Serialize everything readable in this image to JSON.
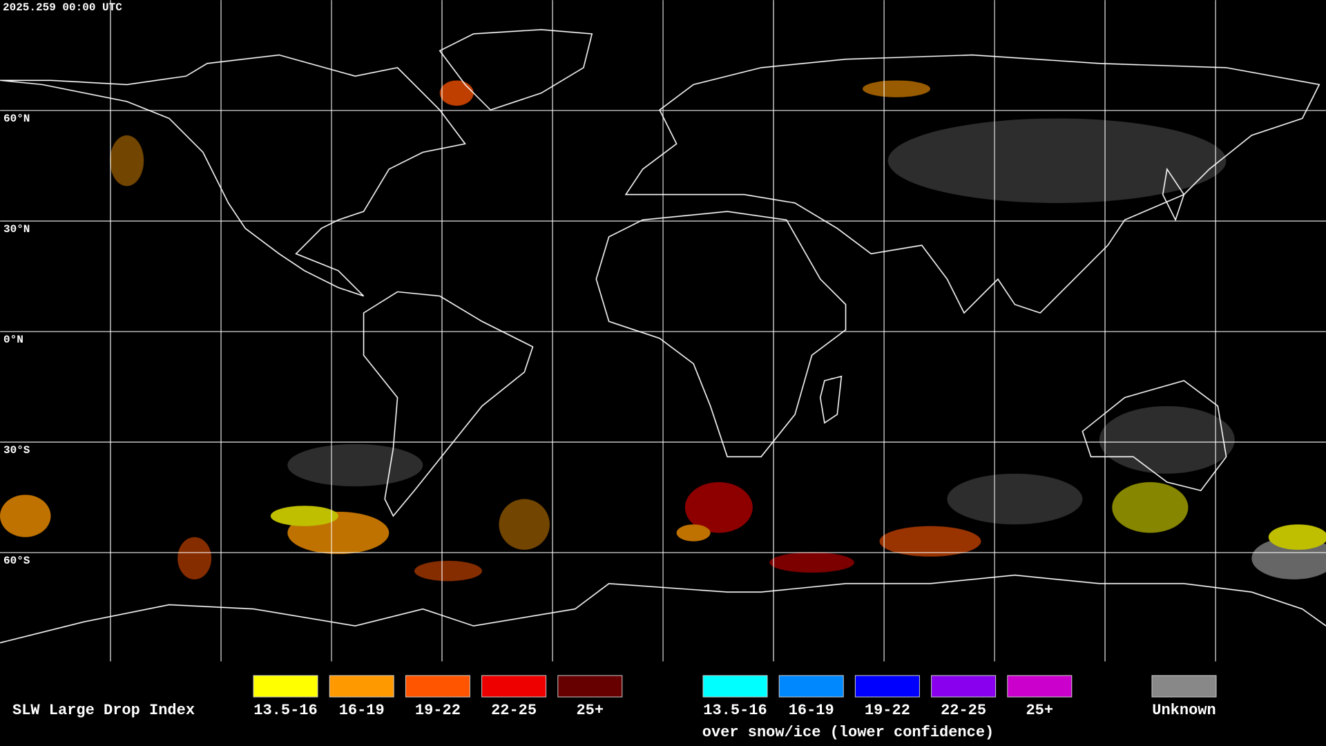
{
  "header": {
    "timestamp": "2025.259 00:00 UTC"
  },
  "map": {
    "lat_labels": [
      "60°N",
      "30°N",
      "0°N",
      "30°S",
      "60°S"
    ]
  },
  "legend": {
    "title": "SLW Large Drop Index",
    "normal": [
      {
        "label": "13.5-16",
        "color": "#ffff00"
      },
      {
        "label": "16-19",
        "color": "#ff9900"
      },
      {
        "label": "19-22",
        "color": "#ff5500"
      },
      {
        "label": "22-25",
        "color": "#ee0000"
      },
      {
        "label": "25+",
        "color": "#660000"
      }
    ],
    "snow_ice": [
      {
        "label": "13.5-16",
        "color": "#00ffff"
      },
      {
        "label": "16-19",
        "color": "#0088ff"
      },
      {
        "label": "19-22",
        "color": "#0000ff"
      },
      {
        "label": "22-25",
        "color": "#8800ee"
      },
      {
        "label": "25+",
        "color": "#cc00cc"
      }
    ],
    "snow_ice_caption": "over snow/ice (lower confidence)",
    "unknown": {
      "label": "Unknown",
      "color": "#888888"
    }
  }
}
